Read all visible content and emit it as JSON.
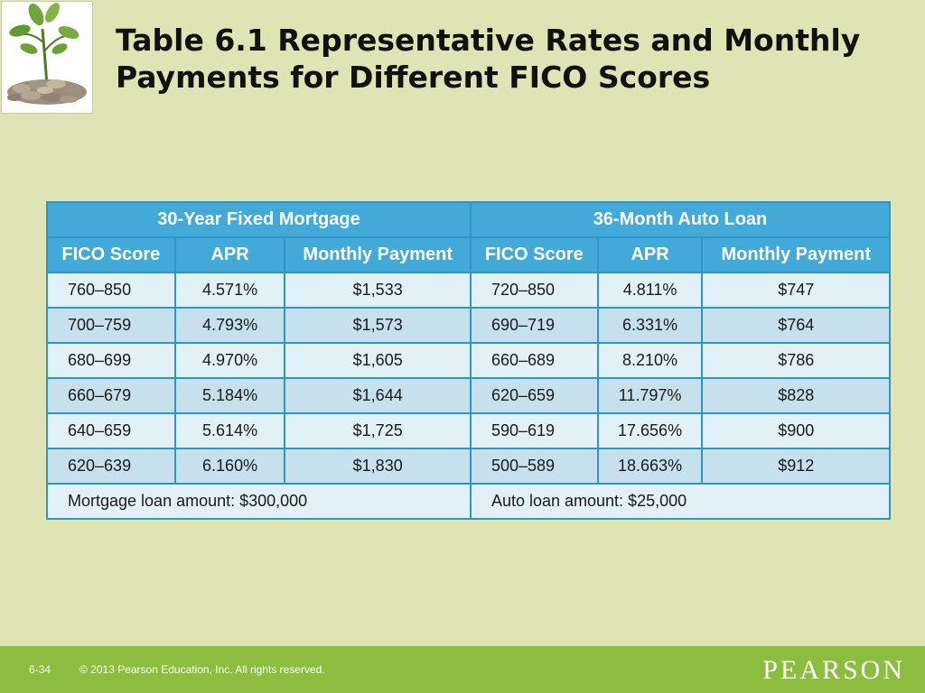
{
  "title": {
    "line1": "Table 6.1  Representative Rates and Monthly",
    "line2": "Payments for Different FICO Scores"
  },
  "logo_icon": "plant-growing-from-coins-icon",
  "table": {
    "groups": [
      "30-Year Fixed Mortgage",
      "36-Month Auto Loan"
    ],
    "columns": [
      "FICO Score",
      "APR",
      "Monthly Payment",
      "FICO Score",
      "APR",
      "Monthly Payment"
    ],
    "rows": [
      [
        "760–850",
        "4.571%",
        "$1,533",
        "720–850",
        "4.811%",
        "$747"
      ],
      [
        "700–759",
        "4.793%",
        "$1,573",
        "690–719",
        "6.331%",
        "$764"
      ],
      [
        "680–699",
        "4.970%",
        "$1,605",
        "660–689",
        "8.210%",
        "$786"
      ],
      [
        "660–679",
        "5.184%",
        "$1,644",
        "620–659",
        "11.797%",
        "$828"
      ],
      [
        "640–659",
        "5.614%",
        "$1,725",
        "590–619",
        "17.656%",
        "$900"
      ],
      [
        "620–639",
        "6.160%",
        "$1,830",
        "500–589",
        "18.663%",
        "$912"
      ]
    ],
    "footer": [
      "Mortgage loan amount: $300,000",
      "Auto loan amount: $25,000"
    ]
  },
  "footer": {
    "slide_number": "6-34",
    "copyright": "© 2013 Pearson Education, Inc. All rights reserved.",
    "brand": "PEARSON"
  },
  "colors": {
    "background": "#dfe4b5",
    "header_blue": "#42a9d8",
    "border_blue": "#2c96cb",
    "row_light": "#e2f0f8",
    "row_dark": "#c7e0ee",
    "footer_green": "#8dbd3e"
  }
}
